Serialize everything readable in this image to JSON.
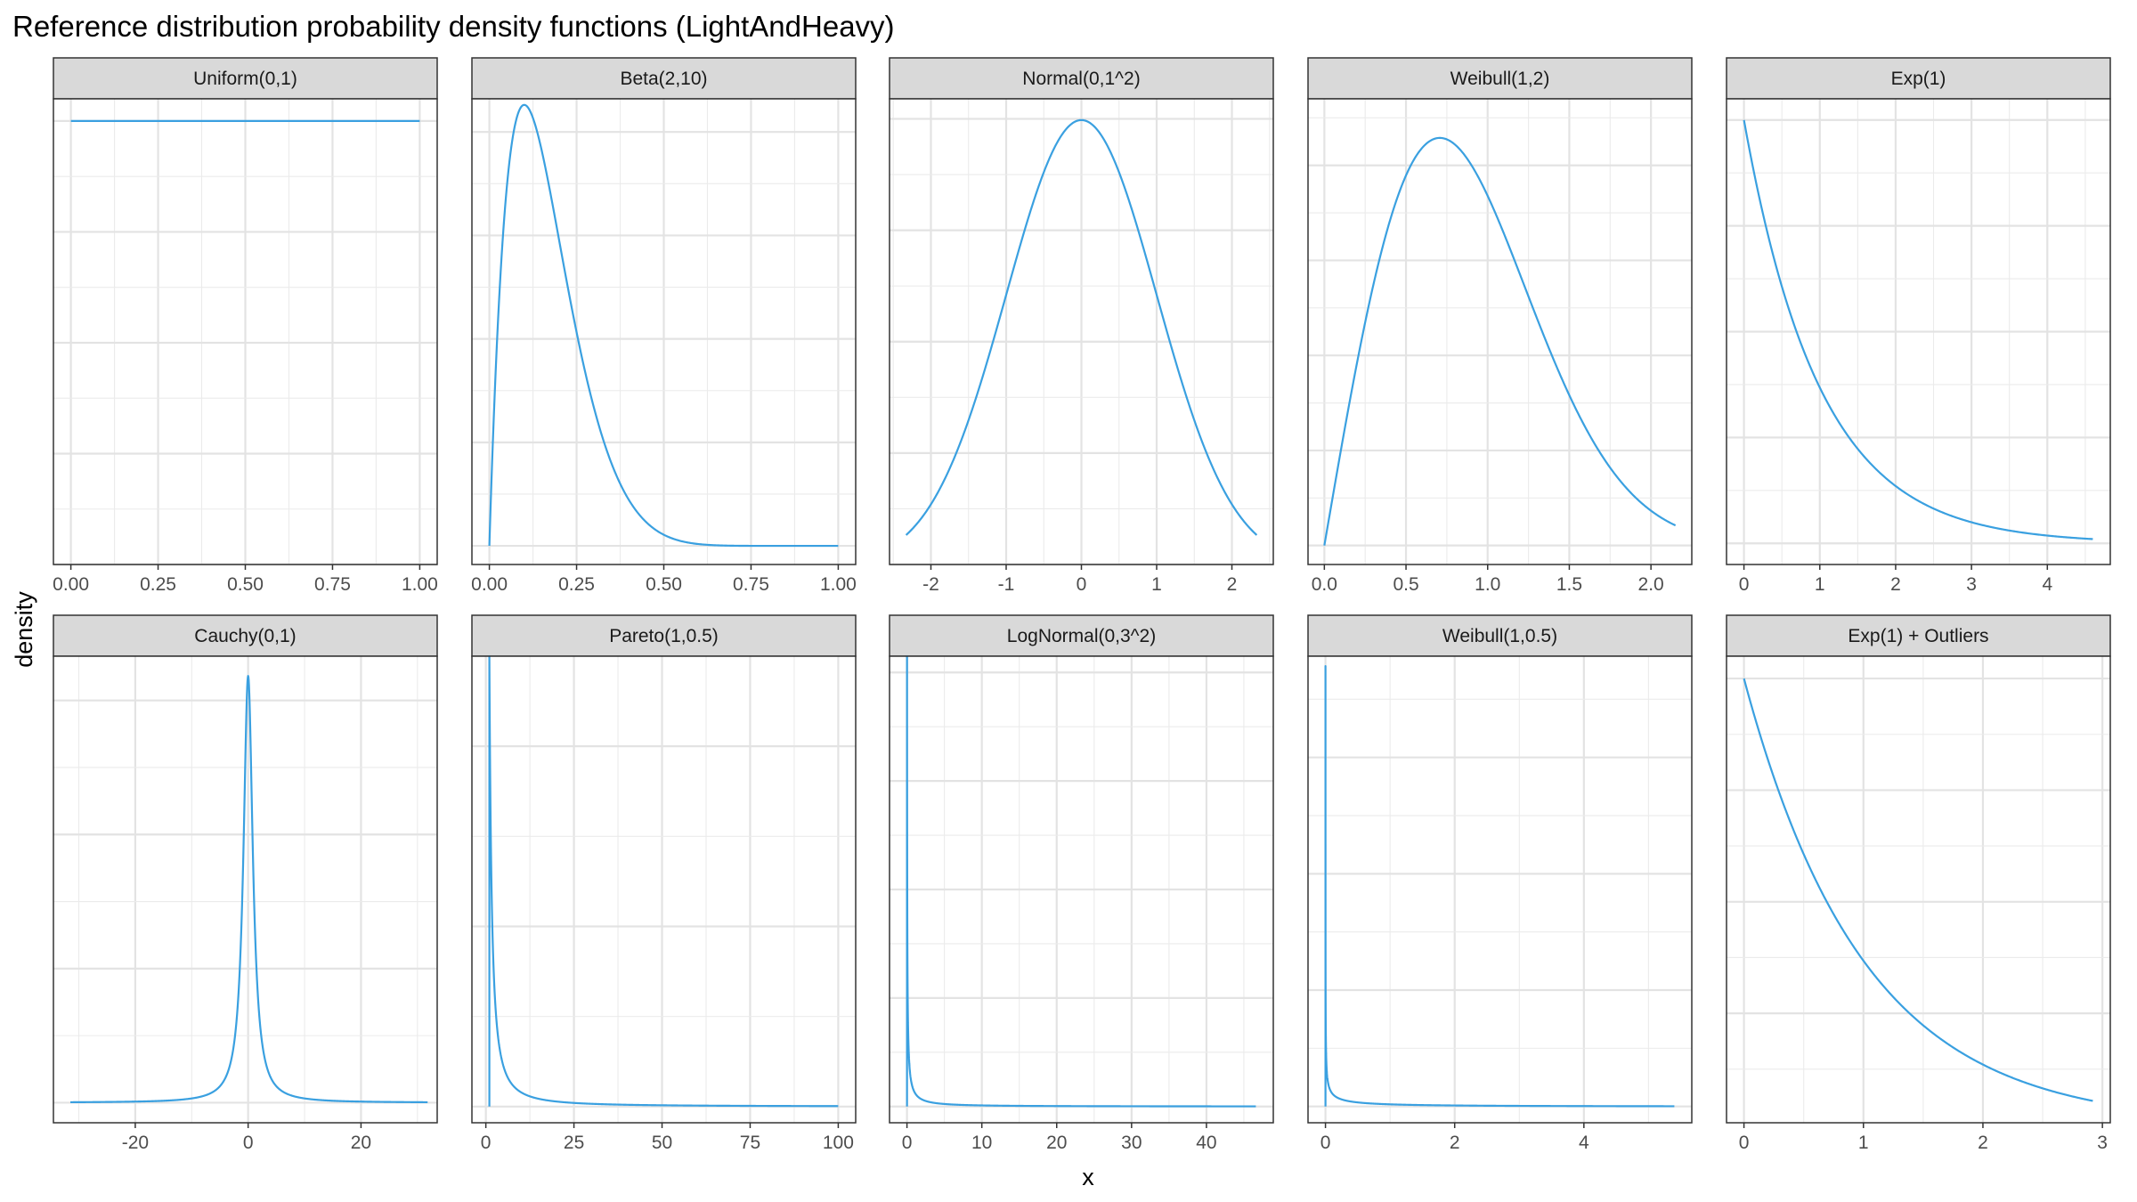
{
  "chart_data": {
    "type": "line",
    "title": "Reference distribution probability density functions (LightAndHeavy)",
    "xlabel": "x",
    "ylabel": "density",
    "grid": true,
    "legend": "none",
    "line_color": "#3aa0e0",
    "panels": [
      {
        "name": "Uniform(0,1)",
        "dist": "uniform",
        "params": [
          0,
          1
        ],
        "xlim": [
          -0.05,
          1.05
        ],
        "xticks": [
          0,
          0.25,
          0.5,
          0.75,
          1
        ],
        "xtick_labels": [
          "0.00",
          "0.25",
          "0.50",
          "0.75",
          "1.00"
        ],
        "xrange": [
          0,
          1
        ],
        "ylim": [
          0,
          1.05
        ],
        "n": 200
      },
      {
        "name": "Beta(2,10)",
        "dist": "beta",
        "params": [
          2,
          10
        ],
        "xlim": [
          -0.05,
          1.05
        ],
        "xticks": [
          0,
          0.25,
          0.5,
          0.75,
          1
        ],
        "xtick_labels": [
          "0.00",
          "0.25",
          "0.50",
          "0.75",
          "1.00"
        ],
        "xrange": [
          0,
          1
        ],
        "ylim": [
          -0.18,
          4.32
        ],
        "n": 400
      },
      {
        "name": "Normal(0,1^2)",
        "dist": "normal",
        "params": [
          0,
          1
        ],
        "xlim": [
          -2.55,
          2.55
        ],
        "xticks": [
          -2,
          -1,
          0,
          1,
          2
        ],
        "xtick_labels": [
          "-2",
          "-1",
          "0",
          "1",
          "2"
        ],
        "xrange": [
          -2.33,
          2.33
        ],
        "ylim": [
          0.0,
          0.418
        ],
        "n": 400
      },
      {
        "name": "Weibull(1,2)",
        "dist": "weibull",
        "params": [
          2,
          1
        ],
        "xlim": [
          -0.1,
          2.25
        ],
        "xticks": [
          0,
          0.5,
          1,
          1.5,
          2
        ],
        "xtick_labels": [
          "0.0",
          "0.5",
          "1.0",
          "1.5",
          "2.0"
        ],
        "xrange": [
          0,
          2.15
        ],
        "ylim": [
          -0.04,
          0.94
        ],
        "n": 400
      },
      {
        "name": "Exp(1)",
        "dist": "exp",
        "params": [
          1
        ],
        "xlim": [
          -0.23,
          4.83
        ],
        "xticks": [
          0,
          1,
          2,
          3,
          4
        ],
        "xtick_labels": [
          "0",
          "1",
          "2",
          "3",
          "4"
        ],
        "xrange": [
          0,
          4.6
        ],
        "ylim": [
          -0.05,
          1.05
        ],
        "n": 400
      },
      {
        "name": "Cauchy(0,1)",
        "dist": "cauchy",
        "params": [
          0,
          1
        ],
        "xlim": [
          -34.5,
          33.5
        ],
        "xticks": [
          -20,
          0,
          20
        ],
        "xtick_labels": [
          "-20",
          "0",
          "20"
        ],
        "xrange": [
          -31.5,
          31.8
        ],
        "ylim": [
          -0.015,
          0.333
        ],
        "n": 1200
      },
      {
        "name": "Pareto(1,0.5)",
        "dist": "pareto",
        "params": [
          1,
          0.5
        ],
        "xlim": [
          -3.95,
          104.95
        ],
        "xticks": [
          0,
          25,
          50,
          75,
          100
        ],
        "xtick_labels": [
          "0",
          "25",
          "50",
          "75",
          "100"
        ],
        "xrange": [
          1,
          100
        ],
        "ylim": [
          -0.018,
          0.5
        ],
        "n": 1200
      },
      {
        "name": "LogNormal(0,3^2)",
        "dist": "lognormal",
        "params": [
          0,
          3
        ],
        "xlim": [
          -2.33,
          48.93
        ],
        "xticks": [
          0,
          10,
          20,
          30,
          40
        ],
        "xtick_labels": [
          "0",
          "10",
          "20",
          "30",
          "40"
        ],
        "xrange": [
          0.0049,
          46.6
        ],
        "ylim": [
          -0.15,
          4.15
        ],
        "n": 1500
      },
      {
        "name": "Weibull(1,0.5)",
        "dist": "weibull",
        "params": [
          0.5,
          1
        ],
        "xlim": [
          -0.27,
          5.67
        ],
        "xticks": [
          0,
          2,
          4
        ],
        "xtick_labels": [
          "0",
          "2",
          "4"
        ],
        "xrange": [
          0.00017,
          5.4
        ],
        "ylim": [
          -1.4,
          38.7
        ],
        "n": 1500
      },
      {
        "name": "Exp(1) + Outliers",
        "dist": "exp",
        "params": [
          1
        ],
        "xlim": [
          -0.146,
          3.066
        ],
        "xticks": [
          0,
          1,
          2,
          3
        ],
        "xtick_labels": [
          "0",
          "1",
          "2",
          "3"
        ],
        "xrange": [
          0,
          2.92
        ],
        "ylim": [
          0.005,
          1.05
        ],
        "n": 400
      }
    ]
  }
}
